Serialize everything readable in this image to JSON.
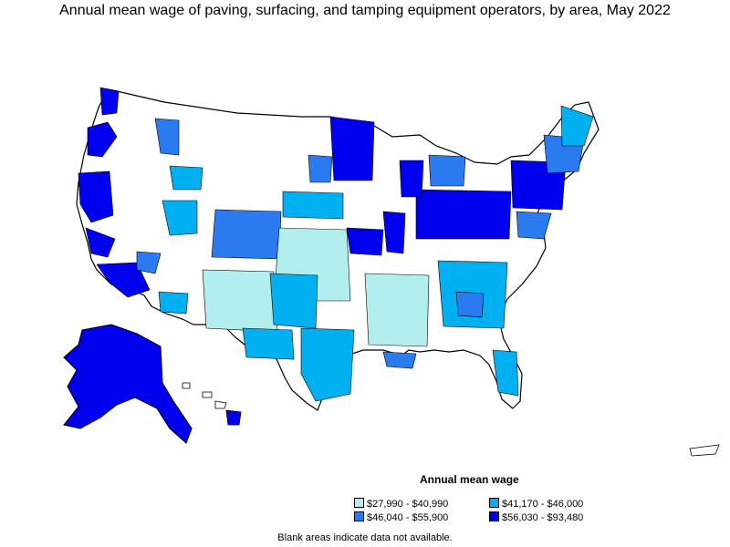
{
  "title": "Annual mean wage of paving, surfacing, and tamping equipment operators, by area, May 2022",
  "legend": {
    "title": "Annual mean wage",
    "items": [
      {
        "label": "$27,990 - $40,990",
        "color": "#b2eeee"
      },
      {
        "label": "$41,170 - $46,000",
        "color": "#00b0f0"
      },
      {
        "label": "$46,040 - $55,900",
        "color": "#2a7bef"
      },
      {
        "label": "$56,030 - $93,480",
        "color": "#0000ee"
      }
    ]
  },
  "note": "Blank areas indicate data not available.",
  "colors": {
    "outline": "#000000",
    "blank": "#ffffff",
    "boundary": "#000000"
  }
}
